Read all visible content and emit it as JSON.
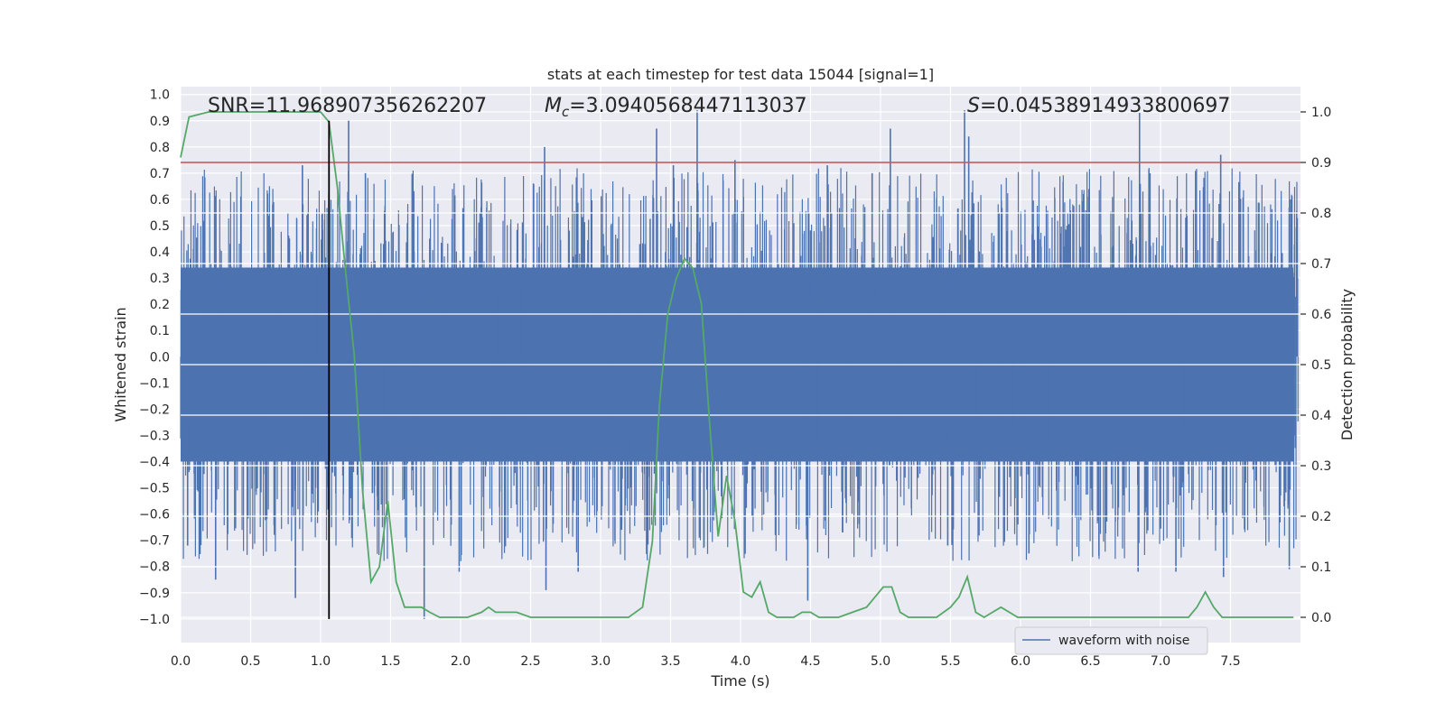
{
  "chart_data": {
    "type": "line",
    "title": "stats at each timestep for test data 15044 [signal=1]",
    "xlabel": "Time (s)",
    "ylabel": "Whitened strain",
    "y2label": "Detection probability",
    "xlim": [
      0.0,
      8.0
    ],
    "ylim": [
      -1.09,
      1.03
    ],
    "y2lim": [
      -0.05,
      1.05
    ],
    "xticks": [
      0.0,
      0.5,
      1.0,
      1.5,
      2.0,
      2.5,
      3.0,
      3.5,
      4.0,
      4.5,
      5.0,
      5.5,
      6.0,
      6.5,
      7.0,
      7.5
    ],
    "yticks": [
      -1.0,
      -0.9,
      -0.8,
      -0.7,
      -0.6,
      -0.5,
      -0.4,
      -0.3,
      -0.2,
      -0.1,
      0.0,
      0.1,
      0.2,
      0.3,
      0.4,
      0.5,
      0.6,
      0.7,
      0.8,
      0.9,
      1.0
    ],
    "y2ticks": [
      0.0,
      0.1,
      0.2,
      0.3,
      0.4,
      0.5,
      0.6,
      0.7,
      0.8,
      0.9,
      1.0
    ],
    "annotations": {
      "snr": "SNR=11.968907356262207",
      "mc_symbol": "M",
      "mc_sub": "c",
      "mc_value": "=3.0940568447113037",
      "s_symbol": "S",
      "s_value": "=0.04538914933800697"
    },
    "legend": {
      "placement": "lower-right",
      "entries": [
        "waveform with noise"
      ]
    },
    "threshold_y2": 0.9,
    "marker_x": 1.06,
    "marker_y_range": [
      -1.0,
      0.9
    ],
    "waveform_spikes": [
      [
        0.82,
        -0.92
      ],
      [
        0.87,
        0.73
      ],
      [
        1.2,
        0.9
      ],
      [
        1.32,
        0.7
      ],
      [
        1.74,
        -1.0
      ],
      [
        1.99,
        -0.82
      ],
      [
        2.6,
        0.8
      ],
      [
        2.61,
        -0.89
      ],
      [
        2.84,
        -0.82
      ],
      [
        3.4,
        0.87
      ],
      [
        3.69,
        0.94
      ],
      [
        3.96,
        0.75
      ],
      [
        4.48,
        -0.93
      ],
      [
        4.62,
        0.73
      ],
      [
        5.07,
        0.87
      ],
      [
        5.6,
        0.94
      ],
      [
        5.63,
        0.84
      ],
      [
        6.06,
        -0.75
      ],
      [
        6.85,
        0.93
      ],
      [
        6.84,
        -0.82
      ],
      [
        7.11,
        -0.82
      ],
      [
        7.43,
        0.77
      ],
      [
        7.45,
        -0.84
      ],
      [
        7.93,
        0.6
      ],
      [
        7.92,
        -0.81
      ],
      [
        0.25,
        -0.85
      ],
      [
        1.37,
        -0.52
      ],
      [
        3.15,
        -0.66
      ],
      [
        3.52,
        0.73
      ],
      [
        4.94,
        0.7
      ],
      [
        0.05,
        -0.72
      ],
      [
        5.48,
        -0.72
      ],
      [
        6.56,
        -0.76
      ]
    ],
    "series": [
      {
        "name": "",
        "axis": "right",
        "color": "#55a868",
        "x": [
          0.0,
          0.06,
          0.2,
          0.4,
          0.6,
          0.8,
          1.0,
          1.06,
          1.12,
          1.18,
          1.24,
          1.3,
          1.36,
          1.42,
          1.48,
          1.54,
          1.6,
          1.66,
          1.72,
          1.78,
          1.85,
          1.95,
          2.05,
          2.15,
          2.2,
          2.25,
          2.3,
          2.4,
          2.5,
          2.6,
          2.7,
          2.8,
          2.9,
          3.0,
          3.1,
          3.2,
          3.3,
          3.37,
          3.42,
          3.48,
          3.54,
          3.6,
          3.66,
          3.72,
          3.78,
          3.84,
          3.9,
          3.96,
          4.02,
          4.08,
          4.14,
          4.2,
          4.26,
          4.32,
          4.38,
          4.44,
          4.5,
          4.56,
          4.62,
          4.7,
          4.8,
          4.9,
          4.96,
          5.02,
          5.08,
          5.14,
          5.2,
          5.26,
          5.32,
          5.4,
          5.5,
          5.56,
          5.62,
          5.68,
          5.74,
          5.8,
          5.86,
          5.92,
          5.98,
          6.04,
          6.2,
          6.4,
          6.6,
          6.8,
          7.0,
          7.2,
          7.26,
          7.32,
          7.38,
          7.44,
          7.5,
          7.56,
          7.62,
          7.7,
          7.8,
          7.95
        ],
        "values": [
          0.91,
          0.99,
          1.0,
          1.0,
          1.0,
          1.0,
          1.0,
          0.98,
          0.85,
          0.68,
          0.52,
          0.25,
          0.07,
          0.1,
          0.23,
          0.07,
          0.02,
          0.02,
          0.02,
          0.01,
          0.0,
          0.0,
          0.0,
          0.01,
          0.02,
          0.01,
          0.01,
          0.01,
          0.0,
          0.0,
          0.0,
          0.0,
          0.0,
          0.0,
          0.0,
          0.0,
          0.02,
          0.15,
          0.42,
          0.6,
          0.67,
          0.71,
          0.69,
          0.62,
          0.38,
          0.16,
          0.28,
          0.19,
          0.05,
          0.04,
          0.07,
          0.01,
          0.0,
          0.0,
          0.0,
          0.01,
          0.01,
          0.0,
          0.0,
          0.0,
          0.01,
          0.02,
          0.04,
          0.06,
          0.06,
          0.01,
          0.0,
          0.0,
          0.0,
          0.0,
          0.02,
          0.04,
          0.08,
          0.01,
          0.0,
          0.01,
          0.02,
          0.01,
          0.0,
          0.0,
          0.0,
          0.0,
          0.0,
          0.0,
          0.0,
          0.0,
          0.02,
          0.05,
          0.02,
          0.0,
          0.0,
          0.0,
          0.0,
          0.0,
          0.0,
          0.0
        ]
      },
      {
        "name": "waveform with noise",
        "axis": "left",
        "color": "#4c72b0",
        "band": [
          -0.4,
          0.34
        ],
        "typical_peak": [
          -0.78,
          0.72
        ]
      }
    ],
    "colors": {
      "background": "#eaeaf2",
      "grid": "#ffffff",
      "waveform": "#4c72b0",
      "probability": "#55a868",
      "threshold": "#c44e52",
      "marker": "#000000",
      "text": "#262626"
    }
  }
}
